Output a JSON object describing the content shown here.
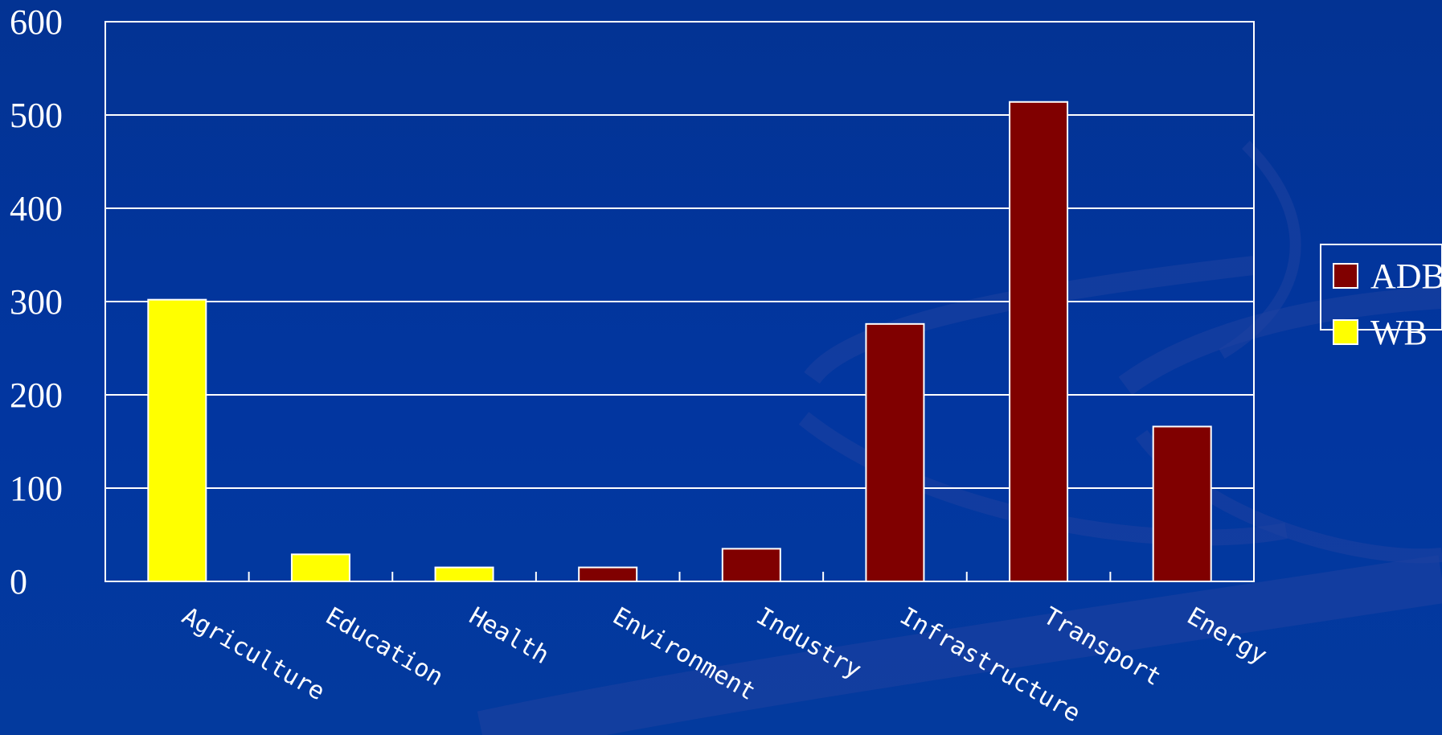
{
  "chart_data": {
    "type": "bar",
    "categories": [
      "Agriculture",
      "Education",
      "Health",
      "Environment",
      "Industry",
      "Infrastructure",
      "Transport",
      "Energy"
    ],
    "series": [
      {
        "name": "ADB",
        "color": "#800000",
        "values": [
          null,
          null,
          null,
          15,
          35,
          276,
          514,
          166
        ]
      },
      {
        "name": "WB",
        "color": "#ffff00",
        "values": [
          302,
          29,
          15,
          null,
          null,
          null,
          null,
          null
        ]
      }
    ],
    "yticks": [
      "0",
      "100",
      "200",
      "300",
      "400",
      "500",
      "600"
    ],
    "ylim": [
      0,
      600
    ],
    "grid": true,
    "legend_position": "right",
    "title": "",
    "xlabel": "",
    "ylabel": ""
  },
  "theme": {
    "background": "#023192",
    "gridline_color": "#ffffff",
    "text_color": "#ffffff",
    "decoration_color": "#1d3f94"
  }
}
